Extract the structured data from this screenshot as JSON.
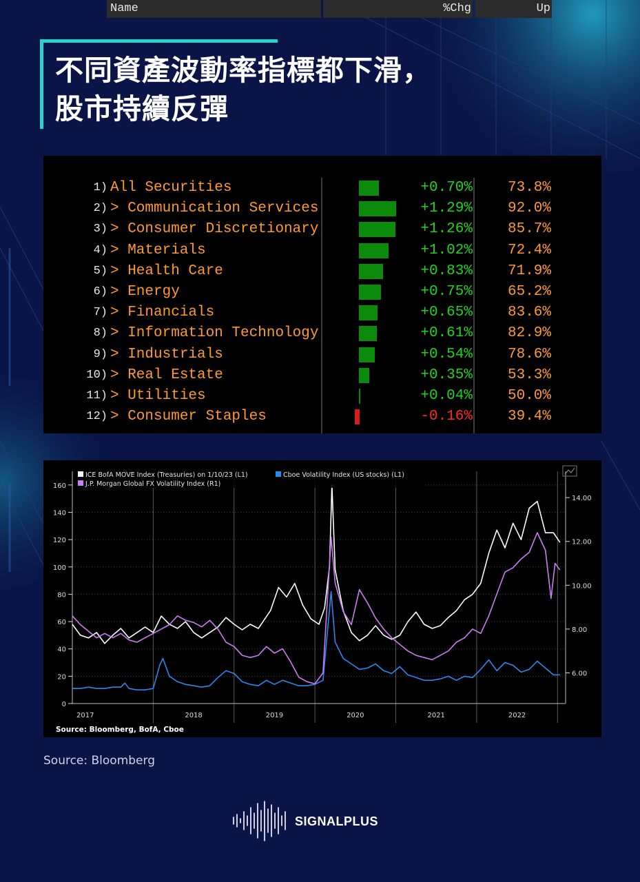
{
  "title_lines": [
    "不同資產波動率指標都下滑，",
    "股市持續反彈"
  ],
  "table": {
    "headers": {
      "name": "Name",
      "chg": "%Chg",
      "up": "Up"
    },
    "rows": [
      {
        "num": "1)",
        "name": "All Securities",
        "chg": "+0.70%",
        "chg_value": 0.7,
        "up": "73.8%"
      },
      {
        "num": "2)",
        "name": "> Communication Services",
        "chg": "+1.29%",
        "chg_value": 1.29,
        "up": "92.0%"
      },
      {
        "num": "3)",
        "name": "> Consumer Discretionary",
        "chg": "+1.26%",
        "chg_value": 1.26,
        "up": "85.7%"
      },
      {
        "num": "4)",
        "name": "> Materials",
        "chg": "+1.02%",
        "chg_value": 1.02,
        "up": "72.4%"
      },
      {
        "num": "5)",
        "name": "> Health Care",
        "chg": "+0.83%",
        "chg_value": 0.83,
        "up": "71.9%"
      },
      {
        "num": "6)",
        "name": "> Energy",
        "chg": "+0.75%",
        "chg_value": 0.75,
        "up": "65.2%"
      },
      {
        "num": "7)",
        "name": "> Financials",
        "chg": "+0.65%",
        "chg_value": 0.65,
        "up": "83.6%"
      },
      {
        "num": "8)",
        "name": "> Information Technology",
        "chg": "+0.61%",
        "chg_value": 0.61,
        "up": "82.9%"
      },
      {
        "num": "9)",
        "name": "> Industrials",
        "chg": "+0.54%",
        "chg_value": 0.54,
        "up": "78.6%"
      },
      {
        "num": "10)",
        "name": "> Real Estate",
        "chg": "+0.35%",
        "chg_value": 0.35,
        "up": "53.3%"
      },
      {
        "num": "11)",
        "name": "> Utilities",
        "chg": "+0.04%",
        "chg_value": 0.04,
        "up": "50.0%"
      },
      {
        "num": "12)",
        "name": "> Consumer Staples",
        "chg": "-0.16%",
        "chg_value": -0.16,
        "up": "39.4%"
      }
    ],
    "colors": {
      "positive": "#1fd51f",
      "negative": "#ff2a2a",
      "bar_positive": "#0b8a0b",
      "bar_negative": "#d81a1a",
      "name": "#ff9a2e"
    }
  },
  "chart_data": {
    "type": "line",
    "legend": [
      {
        "name": "ICE BofA MOVE Index (Treasuries) on 1/10/23 (L1)",
        "color": "#ffffff"
      },
      {
        "name": "Cboe Volatility Index (US stocks) (L1)",
        "color": "#2f86f0"
      },
      {
        "name": "J.P. Morgan Global FX Volatility Index  (R1)",
        "color": "#cc7cf4"
      }
    ],
    "source": "Source: Bloomberg, BofA, Cboe",
    "x_tick_labels": [
      "2017",
      "2018",
      "2019",
      "2020",
      "2021",
      "2022"
    ],
    "left_axis": {
      "ticks": [
        "0",
        "20",
        "40",
        "60",
        "80",
        "100",
        "120",
        "140",
        "160"
      ],
      "ylim": [
        0,
        170
      ]
    },
    "right_axis": {
      "ticks": [
        "6.00",
        "8.00",
        "10.00",
        "12.00",
        "14.00"
      ],
      "ylim": [
        4.6,
        15.2
      ]
    },
    "xlim": [
      2017.0,
      2023.1
    ],
    "series": [
      {
        "name": "ICE BofA MOVE Index (Treasuries) on 1/10/23 (L1)",
        "axis": "left",
        "color": "#ffffff",
        "points": [
          [
            2017.0,
            58
          ],
          [
            2017.1,
            50
          ],
          [
            2017.2,
            48
          ],
          [
            2017.3,
            52
          ],
          [
            2017.4,
            44
          ],
          [
            2017.5,
            50
          ],
          [
            2017.6,
            55
          ],
          [
            2017.7,
            48
          ],
          [
            2017.8,
            52
          ],
          [
            2017.9,
            56
          ],
          [
            2018.0,
            52
          ],
          [
            2018.1,
            64
          ],
          [
            2018.2,
            58
          ],
          [
            2018.3,
            55
          ],
          [
            2018.4,
            60
          ],
          [
            2018.5,
            52
          ],
          [
            2018.6,
            48
          ],
          [
            2018.7,
            52
          ],
          [
            2018.8,
            56
          ],
          [
            2018.9,
            63
          ],
          [
            2019.0,
            58
          ],
          [
            2019.1,
            54
          ],
          [
            2019.2,
            58
          ],
          [
            2019.3,
            55
          ],
          [
            2019.45,
            68
          ],
          [
            2019.55,
            85
          ],
          [
            2019.65,
            78
          ],
          [
            2019.75,
            88
          ],
          [
            2019.85,
            72
          ],
          [
            2019.95,
            62
          ],
          [
            2020.05,
            58
          ],
          [
            2020.12,
            70
          ],
          [
            2020.18,
            100
          ],
          [
            2020.21,
            160
          ],
          [
            2020.25,
            98
          ],
          [
            2020.35,
            68
          ],
          [
            2020.45,
            52
          ],
          [
            2020.55,
            46
          ],
          [
            2020.65,
            50
          ],
          [
            2020.75,
            57
          ],
          [
            2020.85,
            50
          ],
          [
            2020.95,
            47
          ],
          [
            2021.05,
            50
          ],
          [
            2021.15,
            60
          ],
          [
            2021.25,
            67
          ],
          [
            2021.35,
            58
          ],
          [
            2021.45,
            55
          ],
          [
            2021.55,
            57
          ],
          [
            2021.65,
            63
          ],
          [
            2021.75,
            68
          ],
          [
            2021.85,
            76
          ],
          [
            2021.95,
            80
          ],
          [
            2022.05,
            88
          ],
          [
            2022.15,
            110
          ],
          [
            2022.25,
            127
          ],
          [
            2022.35,
            114
          ],
          [
            2022.45,
            132
          ],
          [
            2022.55,
            120
          ],
          [
            2022.65,
            143
          ],
          [
            2022.75,
            148
          ],
          [
            2022.85,
            125
          ],
          [
            2022.95,
            125
          ],
          [
            2023.03,
            118
          ]
        ]
      },
      {
        "name": "Cboe Volatility Index (US stocks) (L1)",
        "axis": "left",
        "color": "#2f86f0",
        "points": [
          [
            2017.0,
            11
          ],
          [
            2017.1,
            11
          ],
          [
            2017.2,
            12
          ],
          [
            2017.3,
            11
          ],
          [
            2017.4,
            11
          ],
          [
            2017.5,
            12
          ],
          [
            2017.6,
            12
          ],
          [
            2017.65,
            15
          ],
          [
            2017.7,
            11
          ],
          [
            2017.8,
            10
          ],
          [
            2017.9,
            10
          ],
          [
            2018.0,
            11
          ],
          [
            2018.08,
            28
          ],
          [
            2018.12,
            33
          ],
          [
            2018.2,
            20
          ],
          [
            2018.3,
            16
          ],
          [
            2018.4,
            14
          ],
          [
            2018.5,
            13
          ],
          [
            2018.6,
            12
          ],
          [
            2018.7,
            13
          ],
          [
            2018.8,
            19
          ],
          [
            2018.9,
            24
          ],
          [
            2019.0,
            22
          ],
          [
            2019.1,
            16
          ],
          [
            2019.2,
            14
          ],
          [
            2019.3,
            13
          ],
          [
            2019.4,
            17
          ],
          [
            2019.5,
            14
          ],
          [
            2019.6,
            17
          ],
          [
            2019.7,
            15
          ],
          [
            2019.8,
            13
          ],
          [
            2019.9,
            13
          ],
          [
            2020.0,
            14
          ],
          [
            2020.1,
            17
          ],
          [
            2020.2,
            82
          ],
          [
            2020.25,
            45
          ],
          [
            2020.35,
            33
          ],
          [
            2020.45,
            29
          ],
          [
            2020.55,
            25
          ],
          [
            2020.65,
            26
          ],
          [
            2020.75,
            29
          ],
          [
            2020.85,
            24
          ],
          [
            2020.95,
            22
          ],
          [
            2021.05,
            27
          ],
          [
            2021.15,
            21
          ],
          [
            2021.25,
            19
          ],
          [
            2021.35,
            17
          ],
          [
            2021.45,
            17
          ],
          [
            2021.55,
            18
          ],
          [
            2021.65,
            20
          ],
          [
            2021.75,
            17
          ],
          [
            2021.85,
            20
          ],
          [
            2021.95,
            19
          ],
          [
            2022.05,
            25
          ],
          [
            2022.15,
            32
          ],
          [
            2022.25,
            24
          ],
          [
            2022.35,
            30
          ],
          [
            2022.45,
            28
          ],
          [
            2022.55,
            23
          ],
          [
            2022.65,
            25
          ],
          [
            2022.75,
            31
          ],
          [
            2022.85,
            26
          ],
          [
            2022.95,
            21
          ],
          [
            2023.03,
            21
          ]
        ]
      },
      {
        "name": "J.P. Morgan Global FX Volatility Index  (R1)",
        "axis": "right",
        "color": "#cc7cf4",
        "points": [
          [
            2017.0,
            8.6
          ],
          [
            2017.1,
            8.2
          ],
          [
            2017.2,
            7.9
          ],
          [
            2017.3,
            7.6
          ],
          [
            2017.4,
            7.8
          ],
          [
            2017.5,
            7.6
          ],
          [
            2017.6,
            7.8
          ],
          [
            2017.7,
            7.5
          ],
          [
            2017.8,
            7.4
          ],
          [
            2017.9,
            7.6
          ],
          [
            2018.0,
            7.8
          ],
          [
            2018.1,
            8.0
          ],
          [
            2018.2,
            8.2
          ],
          [
            2018.3,
            8.6
          ],
          [
            2018.4,
            8.4
          ],
          [
            2018.5,
            8.3
          ],
          [
            2018.6,
            8.1
          ],
          [
            2018.7,
            8.4
          ],
          [
            2018.8,
            8.0
          ],
          [
            2018.9,
            7.4
          ],
          [
            2019.0,
            7.2
          ],
          [
            2019.1,
            6.8
          ],
          [
            2019.2,
            6.7
          ],
          [
            2019.3,
            6.8
          ],
          [
            2019.4,
            7.2
          ],
          [
            2019.5,
            6.9
          ],
          [
            2019.6,
            7.1
          ],
          [
            2019.7,
            6.5
          ],
          [
            2019.8,
            5.8
          ],
          [
            2019.9,
            5.6
          ],
          [
            2020.0,
            5.5
          ],
          [
            2020.1,
            6.0
          ],
          [
            2020.2,
            12.2
          ],
          [
            2020.25,
            10.1
          ],
          [
            2020.35,
            8.8
          ],
          [
            2020.45,
            8.2
          ],
          [
            2020.55,
            9.8
          ],
          [
            2020.65,
            9.2
          ],
          [
            2020.75,
            8.5
          ],
          [
            2020.85,
            8.0
          ],
          [
            2020.95,
            7.6
          ],
          [
            2021.05,
            7.3
          ],
          [
            2021.15,
            7.0
          ],
          [
            2021.25,
            6.8
          ],
          [
            2021.35,
            6.7
          ],
          [
            2021.45,
            6.6
          ],
          [
            2021.55,
            6.8
          ],
          [
            2021.65,
            7.0
          ],
          [
            2021.75,
            7.4
          ],
          [
            2021.85,
            7.6
          ],
          [
            2021.95,
            8.0
          ],
          [
            2022.05,
            7.8
          ],
          [
            2022.15,
            8.6
          ],
          [
            2022.25,
            9.6
          ],
          [
            2022.35,
            10.6
          ],
          [
            2022.45,
            10.8
          ],
          [
            2022.55,
            11.2
          ],
          [
            2022.65,
            11.5
          ],
          [
            2022.75,
            12.4
          ],
          [
            2022.85,
            11.6
          ],
          [
            2022.92,
            9.4
          ],
          [
            2022.97,
            11.0
          ],
          [
            2023.03,
            10.7
          ]
        ]
      }
    ]
  },
  "source_caption": "Source:  Bloomberg",
  "brand": {
    "name": "SIGNALPLUS",
    "icon": "waveform-icon"
  }
}
